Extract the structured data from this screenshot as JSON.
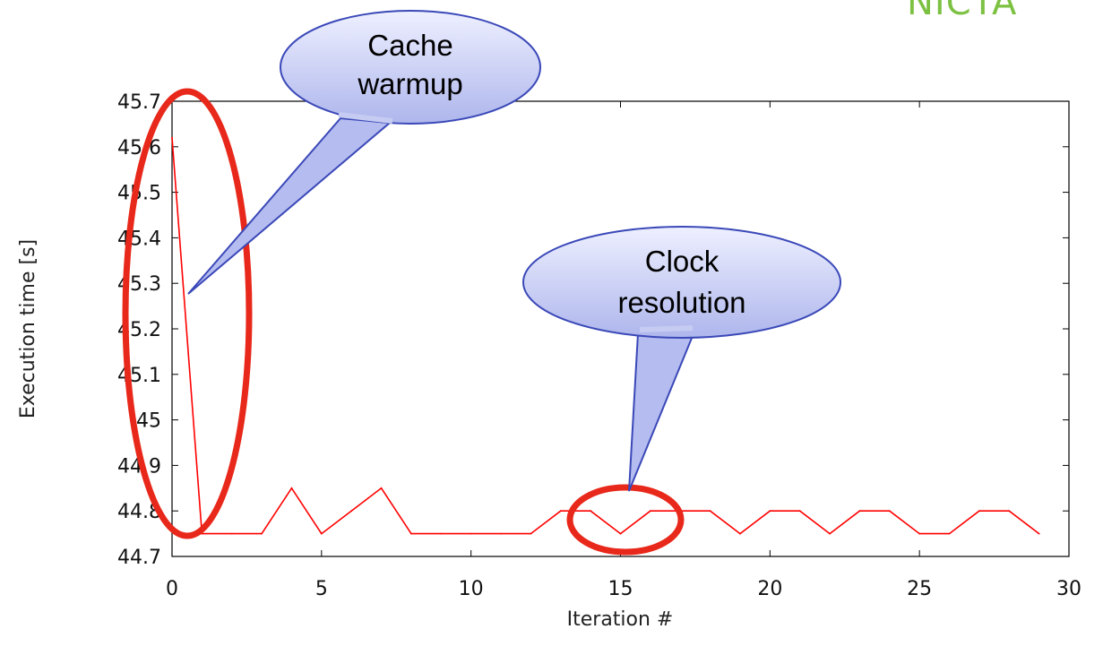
{
  "logo": "NICTA",
  "chart_data": {
    "type": "line",
    "xlabel": "Iteration #",
    "ylabel": "Execution time [s]",
    "xlim": [
      0,
      30
    ],
    "ylim": [
      44.7,
      45.7
    ],
    "xticks": [
      "0",
      "5",
      "10",
      "15",
      "20",
      "25",
      "30"
    ],
    "yticks": [
      "44.7",
      "44.8",
      "44.9",
      "45",
      "45.1",
      "45.2",
      "45.3",
      "45.4",
      "45.5",
      "45.6",
      "45.7"
    ],
    "grid": false,
    "series": [
      {
        "color": "#ff0000",
        "x": [
          0,
          1,
          2,
          3,
          4,
          5,
          6,
          7,
          8,
          9,
          10,
          11,
          12,
          13,
          14,
          15,
          16,
          17,
          18,
          19,
          20,
          21,
          22,
          23,
          24,
          25,
          26,
          27,
          28,
          29
        ],
        "values": [
          45.62,
          44.75,
          44.75,
          44.75,
          44.85,
          44.75,
          44.8,
          44.85,
          44.75,
          44.75,
          44.75,
          44.75,
          44.75,
          44.8,
          44.8,
          44.75,
          44.8,
          44.8,
          44.8,
          44.75,
          44.8,
          44.8,
          44.75,
          44.8,
          44.8,
          44.75,
          44.75,
          44.8,
          44.8,
          44.75
        ]
      }
    ],
    "annotations": [
      {
        "text_lines": [
          "Cache",
          "warmup"
        ],
        "points_to_x": 0.5,
        "points_to_y": 45.27
      },
      {
        "text_lines": [
          "Clock",
          "resolution"
        ],
        "points_to_x": 15.4,
        "points_to_y": 44.85
      }
    ]
  }
}
